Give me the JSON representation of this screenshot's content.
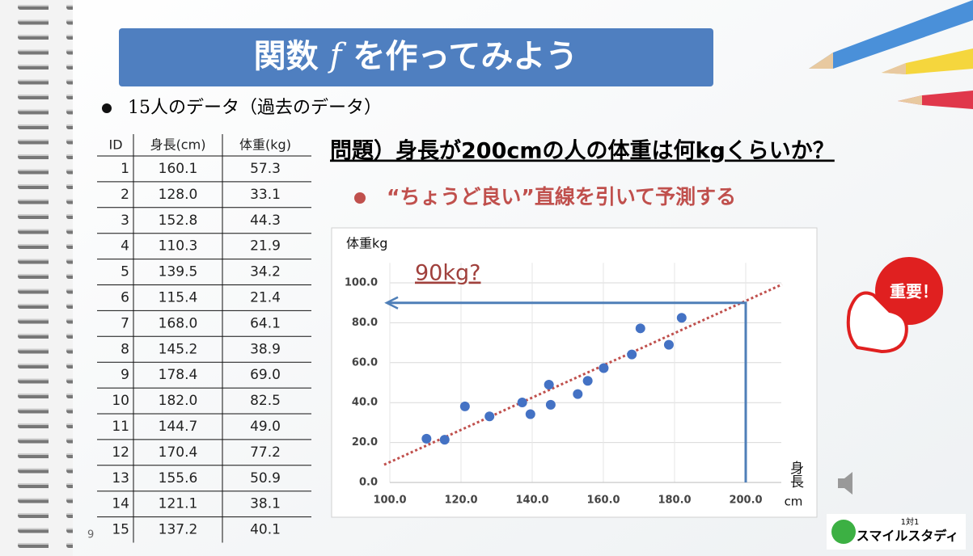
{
  "slide": {
    "title": "関数",
    "title_var": "f",
    "title_rest": "を作ってみよう",
    "bullet": "15人のデータ（過去のデータ）",
    "question": "問題）身長が200cmの人の体重は何kgくらいか？",
    "sub_bullet": "“ちょうど良い”直線を引いて予測する",
    "page_number": "9",
    "badge": "重要！",
    "logo_small": "1対1",
    "logo": "スマイルスタディ"
  },
  "table": {
    "header": [
      "ID",
      "身長(cm)",
      "体重(kg)"
    ],
    "rows": [
      [
        "1",
        "160.1",
        "57.3"
      ],
      [
        "2",
        "128.0",
        "33.1"
      ],
      [
        "3",
        "152.8",
        "44.3"
      ],
      [
        "4",
        "110.3",
        "21.9"
      ],
      [
        "5",
        "139.5",
        "34.2"
      ],
      [
        "6",
        "115.4",
        "21.4"
      ],
      [
        "7",
        "168.0",
        "64.1"
      ],
      [
        "8",
        "145.2",
        "38.9"
      ],
      [
        "9",
        "178.4",
        "69.0"
      ],
      [
        "10",
        "182.0",
        "82.5"
      ],
      [
        "11",
        "144.7",
        "49.0"
      ],
      [
        "12",
        "170.4",
        "77.2"
      ],
      [
        "13",
        "155.6",
        "50.9"
      ],
      [
        "14",
        "121.1",
        "38.1"
      ],
      [
        "15",
        "137.2",
        "40.1"
      ]
    ]
  },
  "chart_data": {
    "type": "scatter",
    "ylabel": "体重kg",
    "xlabel": "身長",
    "xunit": "cm",
    "annotation": "90kg?",
    "x": [
      160.1,
      128.0,
      152.8,
      110.3,
      139.5,
      115.4,
      168.0,
      145.2,
      178.4,
      182.0,
      144.7,
      170.4,
      155.6,
      121.1,
      137.2
    ],
    "values": [
      57.3,
      33.1,
      44.3,
      21.9,
      34.2,
      21.4,
      64.1,
      38.9,
      69.0,
      82.5,
      49.0,
      77.2,
      50.9,
      38.1,
      40.1
    ],
    "color": "#4472c4",
    "trendline": {
      "x": [
        98.4,
        210.2
      ],
      "y": [
        8.9,
        99.2
      ],
      "color": "#c0504d"
    },
    "guide": {
      "x": 200,
      "y": 90,
      "color": "#4f7fb8"
    },
    "xlim": [
      100,
      210
    ],
    "ylim": [
      0,
      110
    ],
    "xticks": [
      {
        "value": 100,
        "label": "100.0"
      },
      {
        "value": 120,
        "label": "120.0"
      },
      {
        "value": 140,
        "label": "140.0"
      },
      {
        "value": 160,
        "label": "160.0"
      },
      {
        "value": 180,
        "label": "180.0"
      },
      {
        "value": 200,
        "label": "200.0"
      }
    ],
    "yticks": [
      {
        "value": 0,
        "label": "0.0"
      },
      {
        "value": 20,
        "label": "20.0"
      },
      {
        "value": 40,
        "label": "40.0"
      },
      {
        "value": 60,
        "label": "60.0"
      },
      {
        "value": 80,
        "label": "80.0"
      },
      {
        "value": 100,
        "label": "100.0"
      }
    ],
    "grid": true
  }
}
